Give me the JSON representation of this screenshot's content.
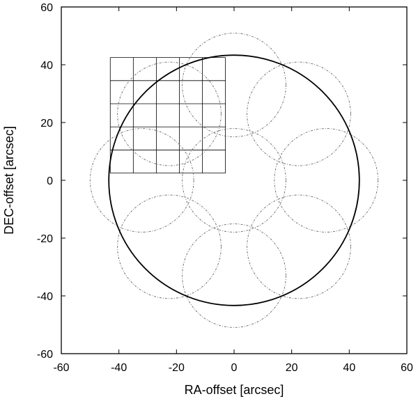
{
  "chart_data": {
    "type": "scatter",
    "title": "",
    "xlabel": "RA-offset [arcsec]",
    "ylabel": "DEC-offset [arcsec]",
    "xlim": [
      -60,
      60
    ],
    "ylim": [
      -60,
      60
    ],
    "xticks": [
      -60,
      -40,
      -20,
      0,
      20,
      40,
      60
    ],
    "yticks": [
      -60,
      -40,
      -20,
      0,
      20,
      40,
      60
    ],
    "xtick_labels": [
      "-60",
      "-40",
      "-20",
      "0",
      "20",
      "40",
      "60"
    ],
    "ytick_labels": [
      "-60",
      "-40",
      "-20",
      "0",
      "20",
      "40",
      "60"
    ],
    "grid": false,
    "legend": "none",
    "main_circle": {
      "center": [
        0,
        0
      ],
      "radius": 43.5,
      "style": "solid"
    },
    "pointing_circles": {
      "radius": 18,
      "style": "dash-dot",
      "centers": [
        [
          0,
          0
        ],
        [
          0,
          33
        ],
        [
          22.5,
          23
        ],
        [
          32,
          0
        ],
        [
          22.5,
          -23
        ],
        [
          0,
          -33
        ],
        [
          -22.5,
          -23
        ],
        [
          -32,
          0
        ],
        [
          -22.5,
          23
        ]
      ]
    },
    "detector_grid": {
      "x_edges": [
        -43,
        -35,
        -27,
        -19,
        -11,
        -3
      ],
      "y_edges": [
        42.5,
        34.5,
        26.5,
        18.5,
        10.5,
        2.5
      ]
    }
  }
}
